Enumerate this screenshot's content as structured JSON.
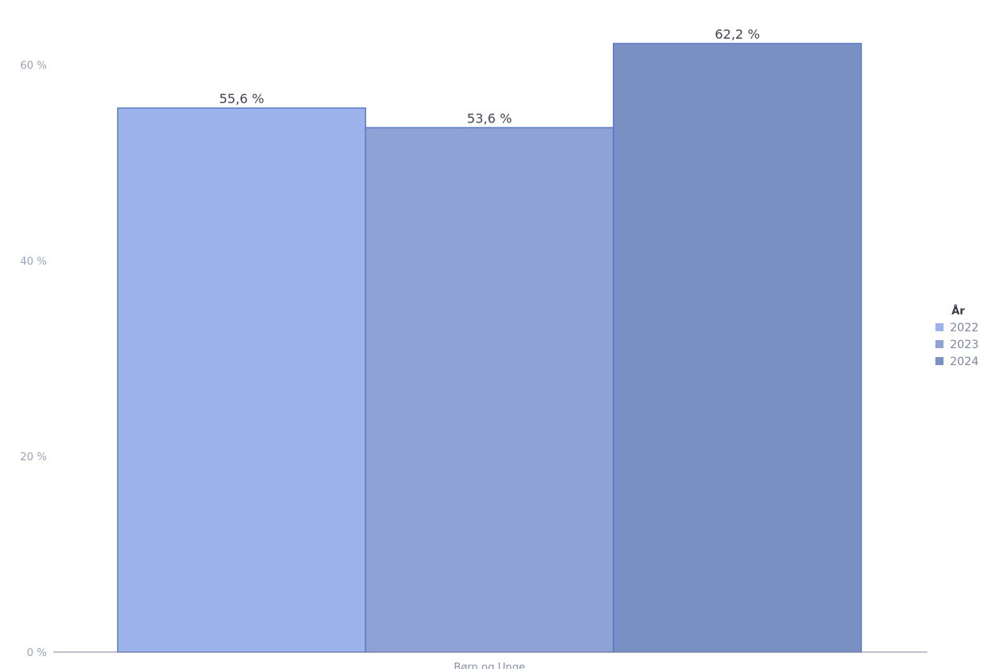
{
  "chart_data": {
    "type": "bar",
    "title": "",
    "xlabel": "",
    "ylabel": "",
    "categories": [
      "Børn og Unge"
    ],
    "series": [
      {
        "name": "2022",
        "values": [
          55.6
        ],
        "label": "55,6 %",
        "color": "#9cb3ec"
      },
      {
        "name": "2023",
        "values": [
          53.6
        ],
        "label": "53,6 %",
        "color": "#8fa2d6"
      },
      {
        "name": "2024",
        "values": [
          62.2
        ],
        "label": "62,2 %",
        "color": "#7b90c2"
      }
    ],
    "ylim": [
      0,
      65
    ],
    "yticks": [
      {
        "value": 0,
        "label": "0 %"
      },
      {
        "value": 20,
        "label": "20 %"
      },
      {
        "value": 40,
        "label": "40 %"
      },
      {
        "value": 60,
        "label": "60 %"
      }
    ],
    "grid": false,
    "legend": {
      "title": "År",
      "placement": "right"
    }
  }
}
